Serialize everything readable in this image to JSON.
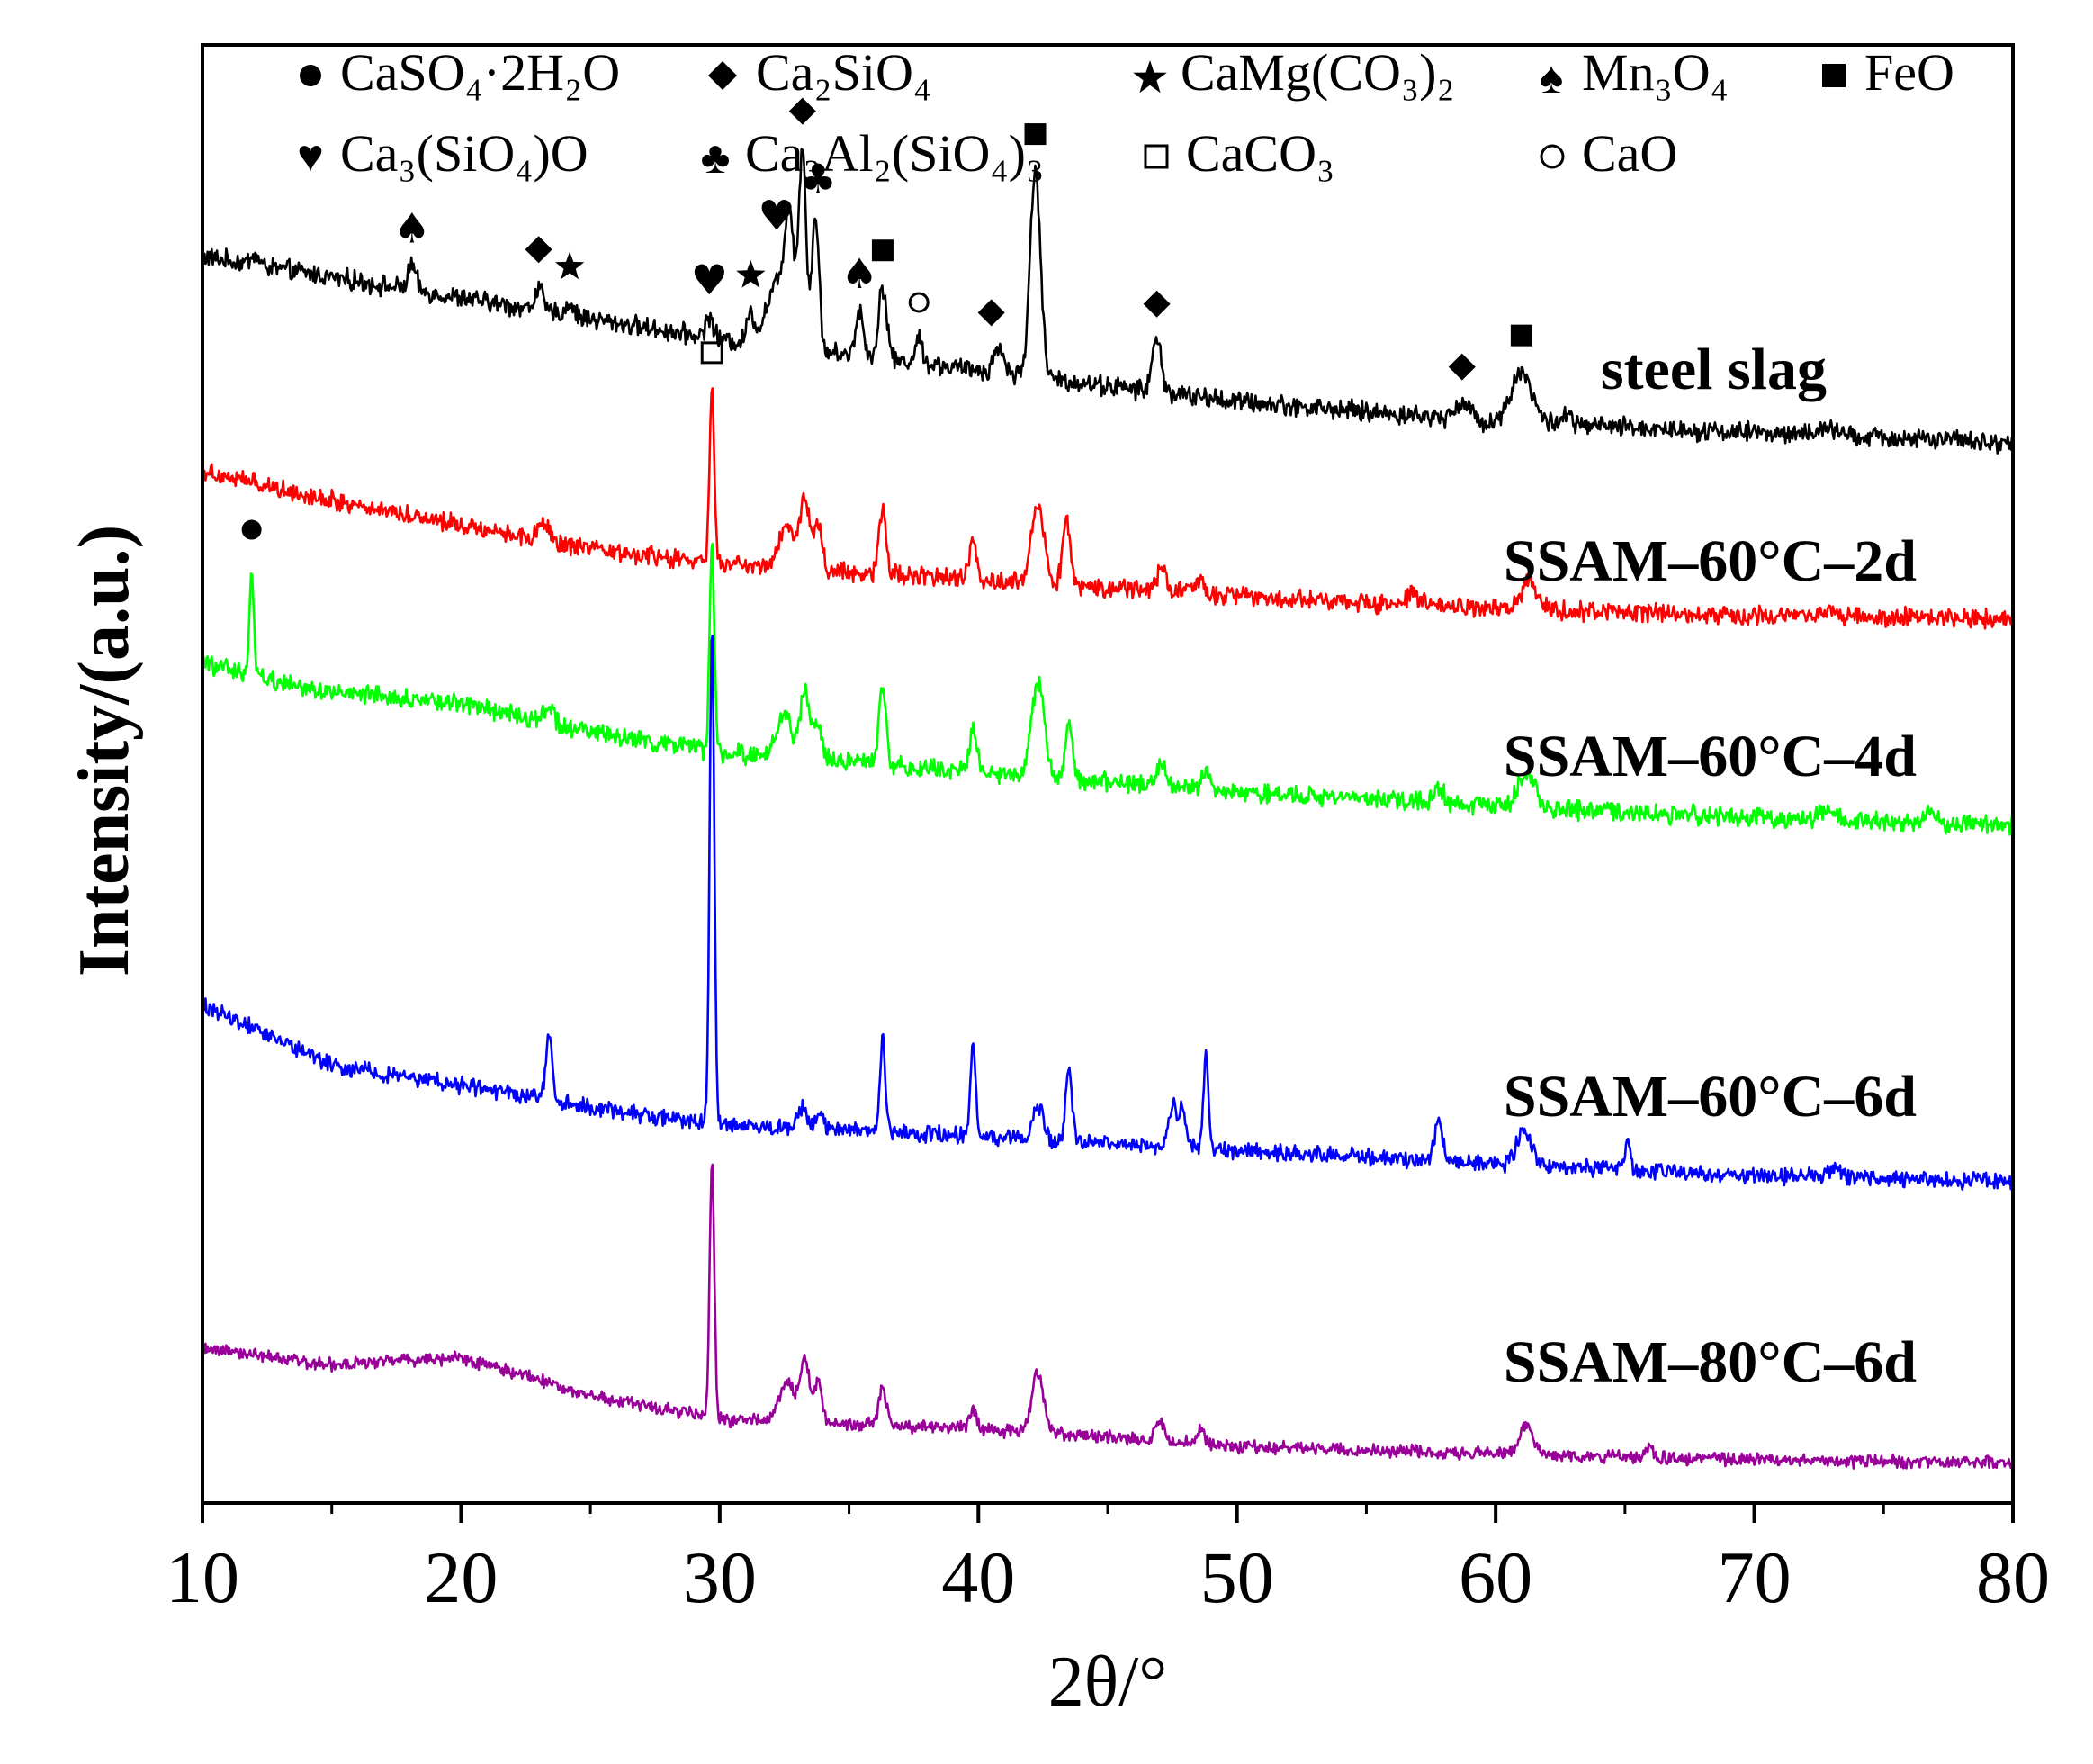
{
  "chart_data": {
    "type": "line",
    "title": "",
    "xlabel": "2θ/°",
    "ylabel": "Intensity/(a.u.)",
    "xlim": [
      10,
      80
    ],
    "x_major_ticks": [
      10,
      20,
      30,
      40,
      50,
      60,
      70,
      80
    ],
    "x_minor_ticks": [
      15,
      25,
      35,
      45,
      55,
      65,
      75
    ],
    "y_ticks_shown": false,
    "legend": {
      "placement": "top",
      "entries": [
        {
          "marker": "filled-circle",
          "label": "CaSO₄·2H₂O"
        },
        {
          "marker": "filled-diamond",
          "label": "Ca₂SiO₄"
        },
        {
          "marker": "star",
          "label": "CaMg(CO₃)₂"
        },
        {
          "marker": "spade",
          "label": "Mn₃O₄"
        },
        {
          "marker": "filled-square",
          "label": "FeO"
        },
        {
          "marker": "heart",
          "label": "Ca₃(SiO₄)O"
        },
        {
          "marker": "club",
          "label": "Ca₃Al₂(SiO₄)₃"
        },
        {
          "marker": "open-square",
          "label": "CaCO₃"
        },
        {
          "marker": "open-circle",
          "label": "CaO"
        }
      ]
    },
    "series": [
      {
        "name": "steel slag",
        "color": "#000000",
        "base": [
          [
            10,
            1.0
          ],
          [
            15,
            0.9
          ],
          [
            20,
            0.8
          ],
          [
            25,
            0.7
          ],
          [
            30,
            0.6
          ],
          [
            40,
            0.45
          ],
          [
            50,
            0.3
          ],
          [
            60,
            0.2
          ],
          [
            70,
            0.15
          ],
          [
            80,
            0.1
          ]
        ],
        "peaks": [
          [
            12,
            0.05,
            0.15
          ],
          [
            18.1,
            0.12,
            0.15
          ],
          [
            23,
            0.12,
            0.14
          ],
          [
            24.2,
            0.06,
            0.14
          ],
          [
            29.6,
            0.1,
            0.15
          ],
          [
            31.2,
            0.14,
            0.14
          ],
          [
            32.2,
            0.3,
            0.4
          ],
          [
            32.7,
            0.55,
            0.18
          ],
          [
            33.2,
            0.95,
            0.14
          ],
          [
            33.7,
            0.65,
            0.14
          ],
          [
            35.4,
            0.22,
            0.15
          ],
          [
            36.3,
            0.35,
            0.16
          ],
          [
            37.7,
            0.12,
            0.14
          ],
          [
            40.8,
            0.12,
            0.2
          ],
          [
            42.2,
            1.0,
            0.2
          ],
          [
            46.9,
            0.25,
            0.18
          ],
          [
            58.7,
            0.08,
            0.3
          ],
          [
            61.0,
            0.25,
            0.4
          ],
          [
            62.7,
            0.05,
            0.2
          ],
          [
            72.8,
            0.04,
            0.3
          ]
        ]
      },
      {
        "name": "SSAM–60°C–2d",
        "color": "#ff0000",
        "base": [
          [
            10,
            0.85
          ],
          [
            15,
            0.7
          ],
          [
            20,
            0.58
          ],
          [
            25,
            0.45
          ],
          [
            30,
            0.38
          ],
          [
            40,
            0.3
          ],
          [
            50,
            0.22
          ],
          [
            60,
            0.15
          ],
          [
            70,
            0.12
          ],
          [
            80,
            0.1
          ]
        ],
        "peaks": [
          [
            23.2,
            0.08,
            0.2
          ],
          [
            29.7,
            0.88,
            0.09
          ],
          [
            32.6,
            0.22,
            0.3
          ],
          [
            33.3,
            0.35,
            0.18
          ],
          [
            33.8,
            0.22,
            0.15
          ],
          [
            36.3,
            0.33,
            0.14
          ],
          [
            39.8,
            0.2,
            0.14
          ],
          [
            42.3,
            0.4,
            0.25
          ],
          [
            43.4,
            0.34,
            0.14
          ],
          [
            47.1,
            0.12,
            0.18
          ],
          [
            48.6,
            0.08,
            0.14
          ],
          [
            56.8,
            0.05,
            0.25
          ],
          [
            61.3,
            0.14,
            0.3
          ],
          [
            72.8,
            0.04,
            0.3
          ]
        ]
      },
      {
        "name": "SSAM–60°C–4d",
        "color": "#00ff00",
        "base": [
          [
            10,
            0.9
          ],
          [
            15,
            0.75
          ],
          [
            20,
            0.7
          ],
          [
            25,
            0.55
          ],
          [
            30,
            0.45
          ],
          [
            40,
            0.35
          ],
          [
            50,
            0.25
          ],
          [
            60,
            0.18
          ],
          [
            70,
            0.12
          ],
          [
            80,
            0.08
          ]
        ],
        "peaks": [
          [
            11.9,
            0.55,
            0.08
          ],
          [
            23.4,
            0.1,
            0.18
          ],
          [
            29.7,
            1.05,
            0.09
          ],
          [
            32.5,
            0.2,
            0.3
          ],
          [
            33.3,
            0.35,
            0.18
          ],
          [
            33.8,
            0.2,
            0.15
          ],
          [
            36.3,
            0.4,
            0.14
          ],
          [
            39.8,
            0.22,
            0.14
          ],
          [
            42.3,
            0.48,
            0.25
          ],
          [
            43.5,
            0.3,
            0.14
          ],
          [
            47.1,
            0.12,
            0.18
          ],
          [
            48.8,
            0.1,
            0.14
          ],
          [
            57.8,
            0.08,
            0.2
          ],
          [
            61.2,
            0.18,
            0.3
          ],
          [
            72.8,
            0.05,
            0.3
          ],
          [
            76.8,
            0.04,
            0.3
          ]
        ]
      },
      {
        "name": "SSAM–60°C–6d",
        "color": "#0000ff",
        "base": [
          [
            10,
            1.15
          ],
          [
            15,
            0.8
          ],
          [
            20,
            0.68
          ],
          [
            25,
            0.55
          ],
          [
            30,
            0.45
          ],
          [
            40,
            0.38
          ],
          [
            50,
            0.3
          ],
          [
            60,
            0.22
          ],
          [
            70,
            0.15
          ],
          [
            80,
            0.12
          ]
        ],
        "peaks": [
          [
            23.4,
            0.4,
            0.12
          ],
          [
            29.7,
            2.9,
            0.09
          ],
          [
            33.2,
            0.12,
            0.18
          ],
          [
            33.9,
            0.08,
            0.14
          ],
          [
            36.3,
            0.55,
            0.1
          ],
          [
            39.8,
            0.55,
            0.1
          ],
          [
            42.3,
            0.2,
            0.2
          ],
          [
            43.5,
            0.42,
            0.12
          ],
          [
            47.5,
            0.25,
            0.14
          ],
          [
            47.9,
            0.25,
            0.12
          ],
          [
            48.8,
            0.55,
            0.1
          ],
          [
            57.8,
            0.25,
            0.14
          ],
          [
            61.1,
            0.2,
            0.28
          ],
          [
            65.1,
            0.15,
            0.1
          ],
          [
            73.2,
            0.05,
            0.25
          ]
        ]
      },
      {
        "name": "SSAM–80°C–6d",
        "color": "#990099",
        "base": [
          [
            10,
            0.95
          ],
          [
            15,
            0.82
          ],
          [
            20,
            0.88
          ],
          [
            25,
            0.6
          ],
          [
            30,
            0.42
          ],
          [
            40,
            0.35
          ],
          [
            50,
            0.22
          ],
          [
            60,
            0.16
          ],
          [
            70,
            0.12
          ],
          [
            80,
            0.1
          ]
        ],
        "peaks": [
          [
            29.7,
            1.9,
            0.09
          ],
          [
            32.6,
            0.3,
            0.3
          ],
          [
            33.3,
            0.45,
            0.18
          ],
          [
            33.8,
            0.3,
            0.15
          ],
          [
            36.3,
            0.28,
            0.15
          ],
          [
            39.8,
            0.14,
            0.14
          ],
          [
            42.3,
            0.45,
            0.22
          ],
          [
            47.0,
            0.14,
            0.18
          ],
          [
            48.6,
            0.1,
            0.14
          ],
          [
            61.2,
            0.22,
            0.28
          ],
          [
            65.9,
            0.08,
            0.14
          ]
        ]
      }
    ],
    "peak_markers": [
      {
        "series": "steel slag",
        "x": 18.1,
        "marker": "spade"
      },
      {
        "series": "steel slag",
        "x": 23.0,
        "marker": "filled-diamond"
      },
      {
        "series": "steel slag",
        "x": 24.2,
        "marker": "star"
      },
      {
        "series": "steel slag",
        "x": 29.6,
        "marker": "heart"
      },
      {
        "series": "steel slag",
        "x": 31.2,
        "marker": "star"
      },
      {
        "series": "steel slag",
        "x": 32.2,
        "marker": "heart"
      },
      {
        "series": "steel slag",
        "x": 33.2,
        "marker": "filled-diamond"
      },
      {
        "series": "steel slag",
        "x": 33.8,
        "marker": "club"
      },
      {
        "series": "steel slag",
        "x": 35.4,
        "marker": "spade"
      },
      {
        "series": "steel slag",
        "x": 36.3,
        "marker": "filled-square"
      },
      {
        "series": "steel slag",
        "x": 37.7,
        "marker": "open-circle"
      },
      {
        "series": "steel slag",
        "x": 40.5,
        "marker": "filled-diamond"
      },
      {
        "series": "steel slag",
        "x": 42.2,
        "marker": "filled-square"
      },
      {
        "series": "steel slag",
        "x": 46.9,
        "marker": "filled-diamond"
      },
      {
        "series": "steel slag",
        "x": 58.7,
        "marker": "filled-diamond"
      },
      {
        "series": "steel slag",
        "x": 61.0,
        "marker": "filled-square"
      },
      {
        "series": "SSAM–60°C–2d",
        "x": 29.7,
        "marker": "open-square"
      },
      {
        "series": "SSAM–60°C–4d",
        "x": 11.9,
        "marker": "filled-circle"
      }
    ]
  }
}
